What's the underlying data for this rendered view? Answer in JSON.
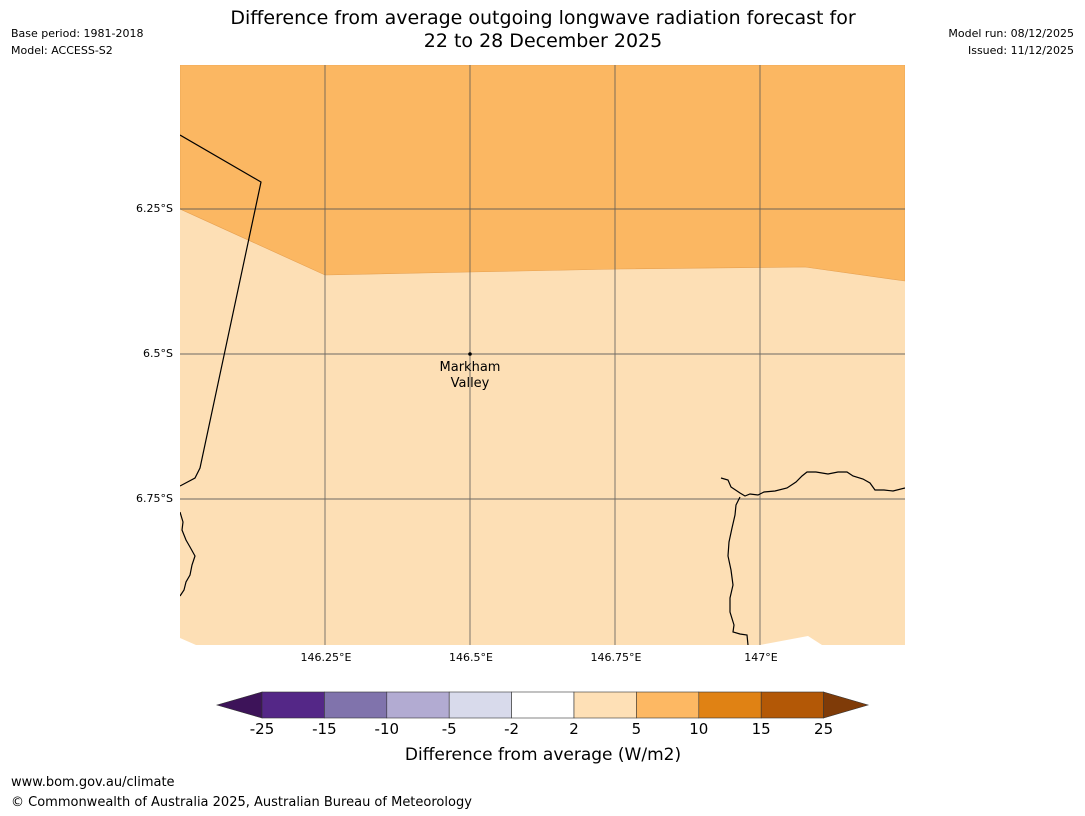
{
  "header": {
    "base_period": "Base period: 1981-2018",
    "model": "Model: ACCESS-S2",
    "title_line1": "Difference from average outgoing longwave radiation forecast for",
    "title_line2": "22 to 28 December 2025",
    "model_run": "Model run: 08/12/2025",
    "issued": "Issued: 11/12/2025"
  },
  "map": {
    "lat_labels": [
      "6.25°S",
      "6.5°S",
      "6.75°S"
    ],
    "lon_labels": [
      "146.25°E",
      "146.5°E",
      "146.75°E",
      "147°E"
    ],
    "place": {
      "line1": "Markham",
      "line2": "Valley"
    },
    "fill_colors": {
      "band_5_10": "#fbb762",
      "band_2_5": "#fddfb5",
      "line": "#000000",
      "grid": "#555555"
    }
  },
  "colorbar": {
    "ticks": [
      "-25",
      "-15",
      "-10",
      "-5",
      "-2",
      "2",
      "5",
      "10",
      "15",
      "25"
    ],
    "colors": [
      "#3d1359",
      "#542787",
      "#8073ac",
      "#b2abd2",
      "#d8daeb",
      "#ffffff",
      "#fee0b6",
      "#fdb863",
      "#e08214",
      "#b35806",
      "#7f3b08"
    ],
    "title": "Difference from average (W/m2)"
  },
  "footer": {
    "url": "www.bom.gov.au/climate",
    "copyright": "© Commonwealth of Australia 2025, Australian Bureau of Meteorology"
  }
}
